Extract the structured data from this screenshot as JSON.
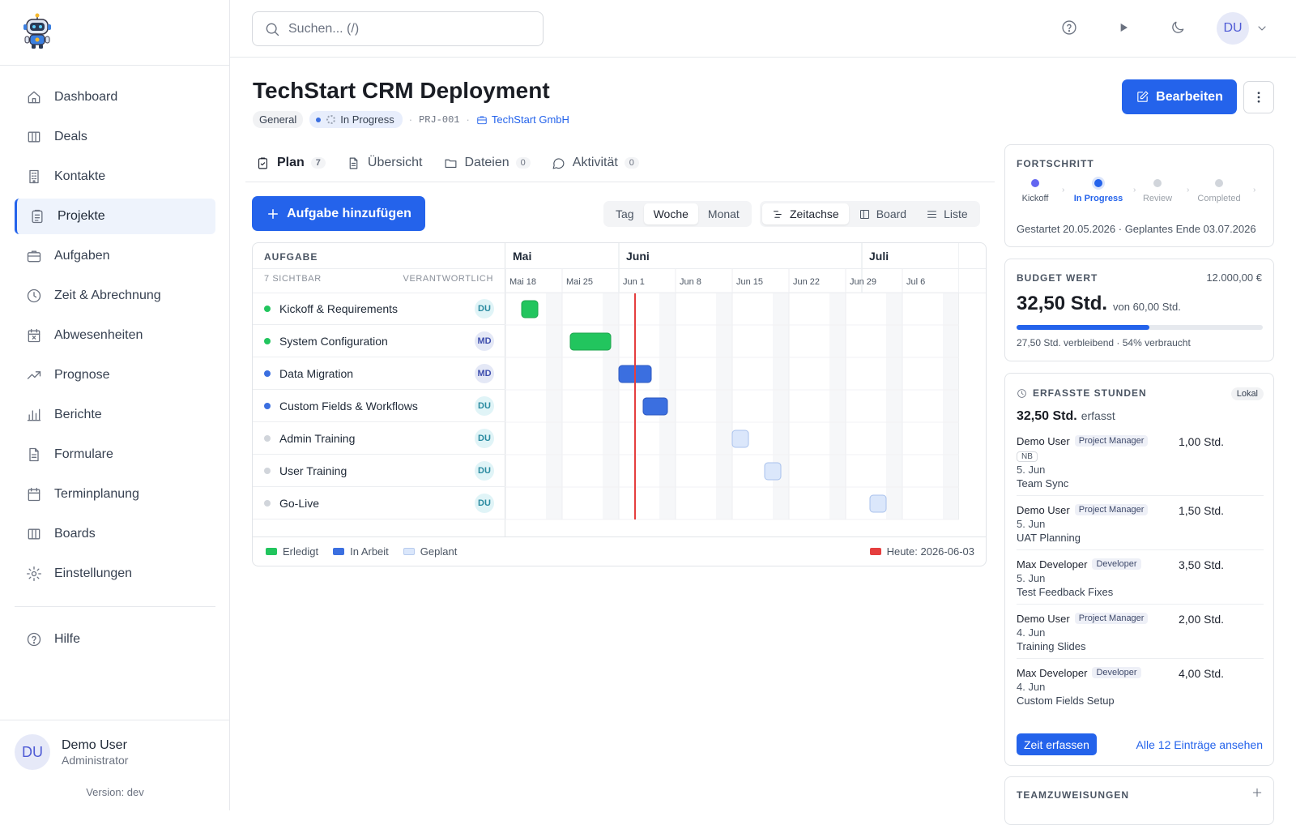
{
  "sidebar": {
    "nav": [
      {
        "label": "Dashboard",
        "icon": "home-icon"
      },
      {
        "label": "Deals",
        "icon": "columns-icon"
      },
      {
        "label": "Kontakte",
        "icon": "building-icon"
      },
      {
        "label": "Projekte",
        "icon": "clipboard-icon",
        "active": true
      },
      {
        "label": "Aufgaben",
        "icon": "briefcase-icon"
      },
      {
        "label": "Zeit & Abrechnung",
        "icon": "clock-icon"
      },
      {
        "label": "Abwesenheiten",
        "icon": "calendar-x-icon"
      },
      {
        "label": "Prognose",
        "icon": "trending-up-icon"
      },
      {
        "label": "Berichte",
        "icon": "bar-chart-icon"
      },
      {
        "label": "Formulare",
        "icon": "file-icon"
      },
      {
        "label": "Terminplanung",
        "icon": "calendar-icon"
      },
      {
        "label": "Boards",
        "icon": "columns-icon"
      },
      {
        "label": "Einstellungen",
        "icon": "gear-icon"
      }
    ],
    "help": "Hilfe",
    "user": {
      "initials": "DU",
      "name": "Demo User",
      "role": "Administrator"
    },
    "version": "Version: dev"
  },
  "topbar": {
    "search_placeholder": "Suchen... (/)",
    "avatar": "DU"
  },
  "project": {
    "title": "TechStart CRM Deployment",
    "category": "General",
    "status": "In Progress",
    "code": "PRJ-001",
    "company": "TechStart GmbH",
    "edit_label": "Bearbeiten"
  },
  "tabs": [
    {
      "label": "Plan",
      "count": "7",
      "active": true
    },
    {
      "label": "Übersicht"
    },
    {
      "label": "Dateien",
      "count": "0"
    },
    {
      "label": "Aktivität",
      "count": "0"
    }
  ],
  "toolbar": {
    "add_label": "Aufgabe hinzufügen",
    "scale": [
      "Tag",
      "Woche",
      "Monat"
    ],
    "scale_selected": "Woche",
    "views": [
      "Zeitachse",
      "Board",
      "Liste"
    ],
    "view_selected": "Zeitachse"
  },
  "gantt": {
    "col_task": "AUFGABE",
    "visible": "7 SICHTBAR",
    "col_owner": "VERANTWORTLICH",
    "months": [
      "Mai",
      "Juni",
      "Juli"
    ],
    "weeks": [
      "Mai 18",
      "Mai 25",
      "Jun 1",
      "Jun 8",
      "Jun 15",
      "Jun 22",
      "Jun 29",
      "Jul 6"
    ],
    "tasks": [
      {
        "name": "Kickoff & Requirements",
        "owner": "DU",
        "status": "done",
        "start": "2026-05-20",
        "end": "2026-05-22"
      },
      {
        "name": "System Configuration",
        "owner": "MD",
        "status": "done",
        "start": "2026-05-26",
        "end": "2026-05-31"
      },
      {
        "name": "Data Migration",
        "owner": "MD",
        "status": "active",
        "start": "2026-06-01",
        "end": "2026-06-05"
      },
      {
        "name": "Custom Fields & Workflows",
        "owner": "DU",
        "status": "active",
        "start": "2026-06-04",
        "end": "2026-06-07"
      },
      {
        "name": "Admin Training",
        "owner": "DU",
        "status": "planned",
        "start": "2026-06-15",
        "end": "2026-06-17"
      },
      {
        "name": "User Training",
        "owner": "DU",
        "status": "planned",
        "start": "2026-06-19",
        "end": "2026-06-21"
      },
      {
        "name": "Go-Live",
        "owner": "DU",
        "status": "planned",
        "start": "2026-07-02",
        "end": "2026-07-04"
      }
    ],
    "today": "2026-06-03",
    "legend": {
      "done": "Erledigt",
      "active": "In Arbeit",
      "planned": "Geplant",
      "today": "Heute: 2026-06-03"
    },
    "colors": {
      "done": "#22c55e",
      "active": "#3b6fe0",
      "planned": "#dbe7fb",
      "today": "#e53e3e"
    }
  },
  "progress": {
    "title": "FORTSCHRITT",
    "steps": [
      "Kickoff",
      "In Progress",
      "Review",
      "Completed"
    ],
    "current": 1,
    "dates": "Gestartet 20.05.2026 · Geplantes Ende 03.07.2026"
  },
  "budget": {
    "title": "BUDGET WERT",
    "total": "12.000,00 €",
    "hours": "32,50 Std.",
    "of": "von 60,00 Std.",
    "percent": 54,
    "sub": "27,50 Std. verbleibend · 54% verbraucht"
  },
  "hours": {
    "title": "ERFASSTE STUNDEN",
    "badge": "Lokal",
    "total": "32,50 Std.",
    "total_suffix": "erfasst",
    "entries": [
      {
        "user": "Demo User",
        "role": "Project Manager",
        "tag": "NB",
        "date": "5. Jun",
        "desc": "Team Sync",
        "hours": "1,00 Std."
      },
      {
        "user": "Demo User",
        "role": "Project Manager",
        "date": "5. Jun",
        "desc": "UAT Planning",
        "hours": "1,50 Std."
      },
      {
        "user": "Max Developer",
        "role": "Developer",
        "date": "5. Jun",
        "desc": "Test Feedback Fixes",
        "hours": "3,50 Std."
      },
      {
        "user": "Demo User",
        "role": "Project Manager",
        "date": "4. Jun",
        "desc": "Training Slides",
        "hours": "2,00 Std."
      },
      {
        "user": "Max Developer",
        "role": "Developer",
        "date": "4. Jun",
        "desc": "Custom Fields Setup",
        "hours": "4,00 Std."
      }
    ],
    "log_label": "Zeit erfassen",
    "all_label": "Alle 12 Einträge ansehen"
  },
  "team": {
    "title": "TEAMZUWEISUNGEN"
  }
}
